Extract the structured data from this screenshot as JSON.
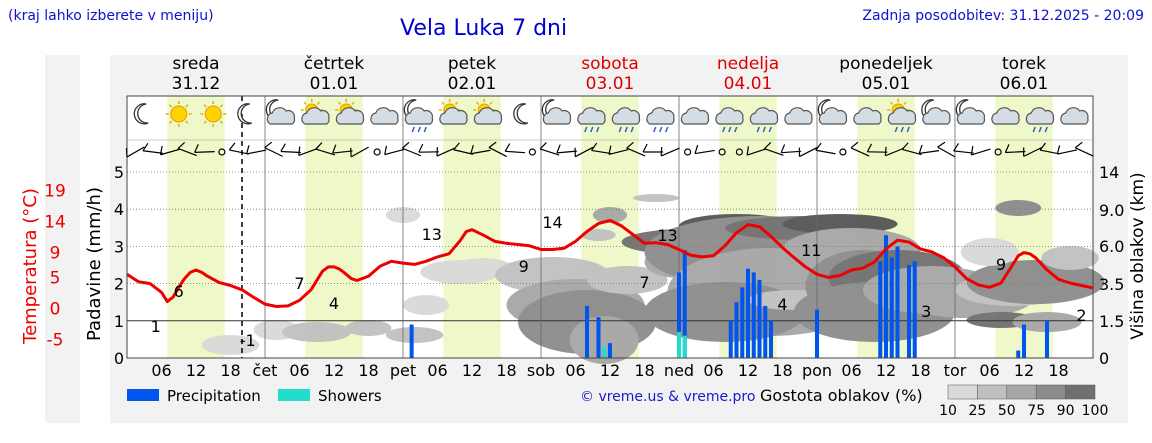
{
  "header": {
    "hint": "(kraj lahko izberete v meniju)",
    "title": "Vela Luka 7 dni",
    "updated": "Zadnja posodobitev: 31.12.2025 - 20:09"
  },
  "colors": {
    "temperature": "#ee0000",
    "precipitation": "#0055ee",
    "showers": "#22ddcc",
    "daylight": "#eef8c8",
    "weekend": "#dd0000"
  },
  "days": [
    {
      "name": "sreda",
      "date": "31.12",
      "weekend": false
    },
    {
      "name": "četrtek",
      "date": "01.01",
      "weekend": false
    },
    {
      "name": "petek",
      "date": "02.01",
      "weekend": false
    },
    {
      "name": "sobota",
      "date": "03.01",
      "weekend": true
    },
    {
      "name": "nedelja",
      "date": "04.01",
      "weekend": true
    },
    {
      "name": "ponedeljek",
      "date": "05.01",
      "weekend": false
    },
    {
      "name": "torek",
      "date": "06.01",
      "weekend": false
    }
  ],
  "weather_icons": [
    "moon-icon",
    "sun-icon",
    "sun-icon",
    "moon-icon",
    "moon-cloud-icon",
    "sun-cloud-icon",
    "sun-cloud-icon",
    "cloud-icon",
    "moon-cloud-rain-icon",
    "sun-cloud-icon",
    "sun-cloud-icon",
    "moon-icon",
    "moon-cloud-icon",
    "cloud-rain-icon",
    "cloud-rain-icon",
    "cloud-rain-icon",
    "cloud-icon",
    "cloud-rain-icon",
    "cloud-rain-icon",
    "cloud-icon",
    "moon-cloud-icon",
    "cloud-icon",
    "sun-cloud-rain-icon",
    "moon-cloud-icon",
    "moon-cloud-icon",
    "cloud-icon",
    "cloud-rain-icon",
    "cloud-icon"
  ],
  "legend": {
    "precipitation": "Precipitation",
    "showers": "Showers",
    "copyright": "© vreme.us & vreme.pro",
    "density_title": "Gostota oblakov (%)",
    "density_ticks": [
      "10",
      "25",
      "50",
      "75",
      "90",
      "100"
    ],
    "density_colors": [
      "#d9d9d9",
      "#c0c0c0",
      "#a6a6a6",
      "#8c8c8c",
      "#707070",
      "#555555"
    ]
  },
  "chart_data": {
    "type": "line",
    "title": "Vela Luka 7 dni",
    "x_unit": "hours since 31.12.2025 00:00",
    "xlim": [
      0,
      168
    ],
    "x_ticks": [
      {
        "x": 6,
        "label": "06"
      },
      {
        "x": 12,
        "label": "12"
      },
      {
        "x": 18,
        "label": "18"
      },
      {
        "x": 24,
        "label": "čet"
      },
      {
        "x": 30,
        "label": "06"
      },
      {
        "x": 36,
        "label": "12"
      },
      {
        "x": 42,
        "label": "18"
      },
      {
        "x": 48,
        "label": "pet"
      },
      {
        "x": 54,
        "label": "06"
      },
      {
        "x": 60,
        "label": "12"
      },
      {
        "x": 66,
        "label": "18"
      },
      {
        "x": 72,
        "label": "sob"
      },
      {
        "x": 78,
        "label": "06"
      },
      {
        "x": 84,
        "label": "12"
      },
      {
        "x": 90,
        "label": "18"
      },
      {
        "x": 96,
        "label": "ned"
      },
      {
        "x": 102,
        "label": "06"
      },
      {
        "x": 108,
        "label": "12"
      },
      {
        "x": 114,
        "label": "18"
      },
      {
        "x": 120,
        "label": "pon"
      },
      {
        "x": 126,
        "label": "06"
      },
      {
        "x": 132,
        "label": "12"
      },
      {
        "x": 138,
        "label": "18"
      },
      {
        "x": 144,
        "label": "tor"
      },
      {
        "x": 150,
        "label": "06"
      },
      {
        "x": 156,
        "label": "12"
      },
      {
        "x": 162,
        "label": "18"
      }
    ],
    "now_marker_hour": 20,
    "daylight_periods": [
      [
        7,
        17
      ],
      [
        31,
        41
      ],
      [
        55,
        65
      ],
      [
        79,
        89
      ],
      [
        103,
        113
      ],
      [
        127,
        137
      ],
      [
        151,
        161
      ]
    ],
    "temperature": {
      "label": "Temperatura (°C)",
      "ylim": [
        -8,
        22
      ],
      "ticks": [
        -5,
        0,
        5,
        9,
        14,
        19
      ],
      "hours": [
        0,
        2,
        4,
        6,
        7,
        8,
        9,
        10,
        11,
        12,
        13,
        14,
        16,
        18,
        20,
        22,
        24,
        26,
        28,
        30,
        32,
        34,
        35,
        36,
        37,
        38,
        39,
        40,
        42,
        44,
        46,
        48,
        50,
        52,
        54,
        56,
        58,
        59,
        60,
        62,
        64,
        66,
        68,
        70,
        72,
        74,
        76,
        78,
        80,
        82,
        84,
        86,
        88,
        90,
        92,
        94,
        96,
        98,
        100,
        102,
        104,
        106,
        108,
        110,
        112,
        114,
        116,
        118,
        120,
        122,
        124,
        126,
        128,
        130,
        132,
        134,
        136,
        138,
        140,
        142,
        144,
        146,
        148,
        150,
        152,
        154,
        155,
        156,
        157,
        158,
        160,
        162,
        164,
        166,
        168
      ],
      "values": [
        5.5,
        4.3,
        4,
        2.6,
        1.1,
        1.8,
        3.4,
        4.8,
        5.8,
        6.2,
        5.8,
        5.2,
        4.2,
        3.7,
        3,
        1.8,
        0.7,
        0.3,
        0.4,
        1.3,
        3,
        6,
        6.7,
        6.7,
        6.3,
        5.6,
        4.8,
        4.5,
        5.2,
        6.8,
        7.6,
        7.3,
        7.1,
        7.6,
        8.3,
        8.8,
        11,
        12.4,
        12.7,
        11.8,
        10.8,
        10.5,
        10.3,
        10.1,
        9.5,
        9.5,
        9.7,
        10.8,
        12.4,
        13.7,
        14.2,
        13.3,
        11.9,
        10.5,
        10.6,
        10.3,
        9.5,
        8.6,
        8.3,
        8.5,
        10.1,
        12.2,
        13.5,
        13.2,
        11.6,
        9.8,
        8.2,
        6.7,
        5.5,
        5,
        5.3,
        6.2,
        6.5,
        7.5,
        9.6,
        11,
        10.7,
        9.6,
        9.1,
        8.2,
        6.7,
        4.8,
        3.8,
        3.4,
        4.1,
        7,
        8.5,
        9,
        8.8,
        8.2,
        6.2,
        4.7,
        4.1,
        3.7,
        3.3
      ],
      "labels": [
        {
          "x": 5,
          "text": "1"
        },
        {
          "x": 9,
          "text": "6"
        },
        {
          "x": 21,
          "text": "-1"
        },
        {
          "x": 30,
          "text": "7"
        },
        {
          "x": 36,
          "text": "4"
        },
        {
          "x": 53,
          "text": "13"
        },
        {
          "x": 69,
          "text": "9"
        },
        {
          "x": 74,
          "text": "14"
        },
        {
          "x": 90,
          "text": "7"
        },
        {
          "x": 94,
          "text": "13"
        },
        {
          "x": 114,
          "text": "4"
        },
        {
          "x": 119,
          "text": "11"
        },
        {
          "x": 139,
          "text": "3"
        },
        {
          "x": 152,
          "text": "9"
        },
        {
          "x": 166,
          "text": "2"
        }
      ]
    },
    "precipitation": {
      "label": "Padavine (mm/h)",
      "ylim": [
        0,
        5
      ],
      "ticks": [
        0,
        1,
        2,
        3,
        4,
        5
      ],
      "bars": [
        [
          49.5,
          0.9
        ],
        [
          80,
          1.4
        ],
        [
          82,
          1.1
        ],
        [
          84,
          0.4
        ],
        [
          96,
          2.3
        ],
        [
          97,
          2.9
        ],
        [
          105,
          1
        ],
        [
          106,
          1.5
        ],
        [
          107,
          1.9
        ],
        [
          108,
          2.4
        ],
        [
          109,
          2.3
        ],
        [
          110,
          2.1
        ],
        [
          111,
          1.4
        ],
        [
          112,
          1
        ],
        [
          120,
          1.3
        ],
        [
          131,
          2.6
        ],
        [
          132,
          3.3
        ],
        [
          133,
          2.7
        ],
        [
          134,
          3
        ],
        [
          136,
          2.5
        ],
        [
          137,
          2.6
        ],
        [
          155,
          0.2
        ],
        [
          156,
          0.9
        ],
        [
          160,
          1
        ]
      ],
      "shower_bars": [
        [
          83,
          0.3
        ],
        [
          96,
          0.7
        ],
        [
          97,
          0.6
        ]
      ]
    },
    "cloud_height": {
      "label": "Višina oblakov (km)",
      "ylim": [
        0,
        15
      ],
      "ticks": [
        "0",
        "1.5",
        "3.5",
        "6.0",
        "9.0",
        "14"
      ]
    }
  }
}
